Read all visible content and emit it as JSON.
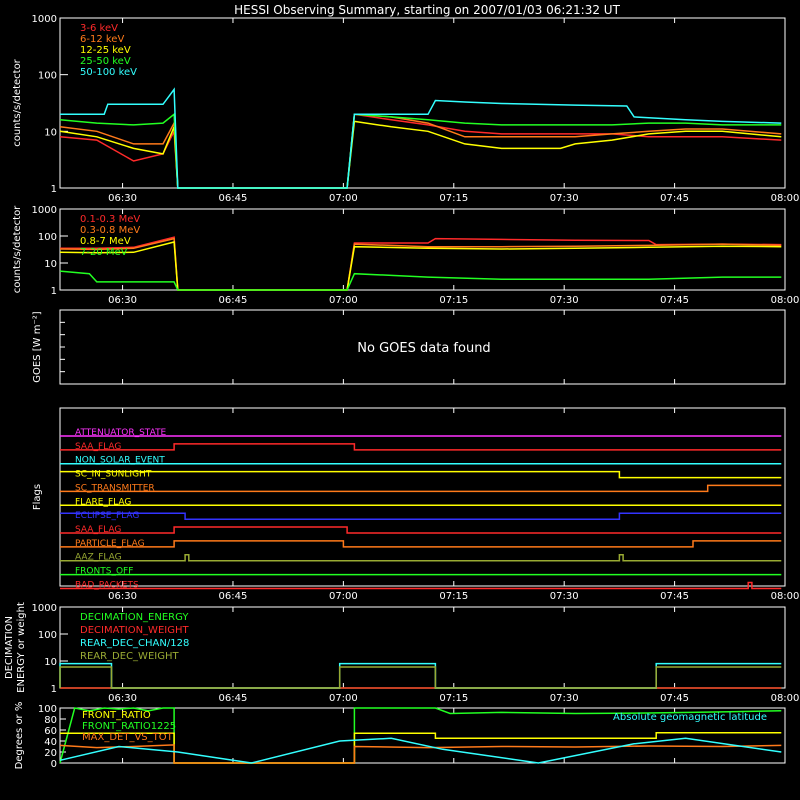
{
  "title": "HESSI Observing Summary, starting on 2007/01/03 06:21:32 UT",
  "time_ticks": [
    "06:30",
    "06:45",
    "07:00",
    "07:15",
    "07:30",
    "07:45",
    "08:00"
  ],
  "colors": {
    "red": "#ff2a2a",
    "orange": "#ff7a1a",
    "yellow": "#ffff00",
    "green": "#22ff22",
    "cyan": "#33ffff",
    "magenta": "#ff33ff",
    "blue": "#3333ff",
    "olive": "#99aa33",
    "white": "#ffffff",
    "darkred": "#cc2222"
  },
  "chart_data": [
    {
      "type": "line",
      "panel": "low-energy",
      "ylabel": "counts/s/detector",
      "yscale": "log",
      "ylim": [
        1,
        1000
      ],
      "y_ticks": [
        "1000",
        "100",
        "10",
        "1"
      ],
      "x_range_minutes": [
        0,
        98
      ],
      "legend": [
        "3-6 keV",
        "6-12 keV",
        "12-25 keV",
        "25-50 keV",
        "50-100 keV"
      ],
      "series": [
        {
          "name": "3-6 keV",
          "color": "red",
          "x": [
            0,
            5,
            10,
            14,
            15.5,
            16,
            39,
            40,
            45,
            50,
            55,
            60,
            68,
            70,
            75,
            80,
            85,
            90,
            98
          ],
          "y": [
            8,
            7,
            3,
            4,
            10,
            1,
            1,
            20,
            16,
            13,
            10,
            9,
            9,
            9,
            9,
            8,
            8,
            8,
            7
          ]
        },
        {
          "name": "6-12 keV",
          "color": "orange",
          "x": [
            0,
            5,
            10,
            14,
            15.5,
            16,
            39,
            40,
            45,
            50,
            55,
            60,
            68,
            70,
            75,
            80,
            85,
            90,
            98
          ],
          "y": [
            12,
            10,
            6,
            6,
            14,
            1,
            1,
            20,
            18,
            14,
            8,
            8,
            8,
            8,
            9,
            10,
            11,
            11,
            9
          ]
        },
        {
          "name": "12-25 keV",
          "color": "yellow",
          "x": [
            0,
            5,
            10,
            14,
            15.5,
            16,
            39,
            40,
            45,
            50,
            55,
            60,
            68,
            70,
            75,
            80,
            85,
            90,
            98
          ],
          "y": [
            10,
            8,
            5,
            4,
            12,
            1,
            1,
            15,
            12,
            10,
            6,
            5,
            5,
            6,
            7,
            9,
            10,
            10,
            8
          ]
        },
        {
          "name": "25-50 keV",
          "color": "green",
          "x": [
            0,
            5,
            10,
            14,
            15.5,
            16,
            39,
            40,
            45,
            50,
            55,
            60,
            68,
            70,
            75,
            80,
            85,
            90,
            98
          ],
          "y": [
            16,
            14,
            13,
            14,
            20,
            1,
            1,
            20,
            18,
            16,
            14,
            13,
            13,
            13,
            13,
            14,
            14,
            13,
            13
          ]
        },
        {
          "name": "50-100 keV",
          "color": "cyan",
          "x": [
            0,
            6,
            6.5,
            14,
            15.5,
            16,
            39,
            40,
            50,
            51,
            55,
            60,
            70,
            77,
            78,
            85,
            90,
            98
          ],
          "y": [
            20,
            20,
            30,
            30,
            55,
            1,
            1,
            20,
            20,
            35,
            33,
            31,
            29,
            28,
            18,
            16,
            15,
            14
          ]
        }
      ]
    },
    {
      "type": "line",
      "panel": "high-energy",
      "ylabel": "counts/s/detector",
      "yscale": "log",
      "ylim": [
        1,
        1000
      ],
      "y_ticks": [
        "1000",
        "100",
        "10",
        "1"
      ],
      "x_range_minutes": [
        0,
        98
      ],
      "legend": [
        "0.1-0.3 MeV",
        "0.3-0.8 MeV",
        "0.8-7 MeV",
        "7-20 MeV"
      ],
      "series": [
        {
          "name": "0.1-0.3 MeV",
          "color": "red",
          "x": [
            0,
            5,
            10,
            15.5,
            16,
            39,
            40,
            50,
            51,
            60,
            70,
            80,
            81,
            90,
            98
          ],
          "y": [
            35,
            35,
            38,
            90,
            1,
            1,
            55,
            55,
            80,
            75,
            70,
            68,
            48,
            50,
            48
          ]
        },
        {
          "name": "0.3-0.8 MeV",
          "color": "orange",
          "x": [
            0,
            5,
            10,
            15.5,
            16,
            39,
            40,
            50,
            60,
            70,
            80,
            90,
            98
          ],
          "y": [
            33,
            32,
            35,
            80,
            1,
            1,
            50,
            40,
            40,
            42,
            45,
            50,
            45
          ]
        },
        {
          "name": "0.8-7 MeV",
          "color": "yellow",
          "x": [
            0,
            5,
            10,
            15.5,
            16,
            39,
            40,
            50,
            60,
            70,
            80,
            90,
            98
          ],
          "y": [
            25,
            24,
            25,
            60,
            1,
            1,
            40,
            35,
            33,
            35,
            38,
            42,
            40
          ]
        },
        {
          "name": "7-20 MeV",
          "color": "green",
          "x": [
            0,
            4,
            5,
            15.5,
            16,
            39,
            40,
            50,
            60,
            70,
            80,
            90,
            98
          ],
          "y": [
            5,
            4,
            2,
            2,
            1,
            1,
            4,
            3,
            2.5,
            2.5,
            2.5,
            3,
            3
          ]
        }
      ]
    },
    {
      "type": "line",
      "panel": "goes",
      "ylabel": "GOES [W m⁻²]",
      "annotation": "No GOES data found",
      "series": []
    },
    {
      "type": "line",
      "panel": "flags",
      "ylabel": "Flags",
      "x_range_minutes": [
        0,
        98
      ],
      "series": [
        {
          "name": "ATTENUATOR_STATE",
          "color": "magenta",
          "x": [
            0,
            98
          ],
          "y": [
            0,
            0
          ]
        },
        {
          "name": "SAA_FLAG",
          "color": "red",
          "x": [
            0,
            15.5,
            15.5,
            40,
            40,
            98
          ],
          "y": [
            0,
            0,
            1,
            1,
            0,
            0
          ]
        },
        {
          "name": "NON_SOLAR_EVENT",
          "color": "cyan",
          "x": [
            0,
            98
          ],
          "y": [
            0,
            0
          ]
        },
        {
          "name": "SC_IN_SUNLIGHT",
          "color": "yellow",
          "x": [
            0,
            76,
            76,
            98
          ],
          "y": [
            1,
            1,
            0,
            0
          ]
        },
        {
          "name": "SC_TRANSMITTER",
          "color": "orange",
          "x": [
            0,
            88,
            88,
            98
          ],
          "y": [
            0,
            0,
            1,
            1
          ]
        },
        {
          "name": "FLARE_FLAG",
          "color": "yellow",
          "x": [
            0,
            98
          ],
          "y": [
            0,
            0
          ]
        },
        {
          "name": "ECLIPSE_FLAG",
          "color": "blue",
          "x": [
            0,
            17,
            17,
            76,
            76,
            98
          ],
          "y": [
            1,
            1,
            0,
            0,
            1,
            1
          ]
        },
        {
          "name": "SAA_FLAG",
          "color": "red",
          "x": [
            0,
            15.5,
            15.5,
            39,
            39,
            98
          ],
          "y": [
            0,
            0,
            1,
            1,
            0,
            0
          ]
        },
        {
          "name": "PARTICLE_FLAG",
          "color": "orange",
          "x": [
            0,
            15.5,
            15.5,
            38.5,
            38.5,
            86,
            86,
            98
          ],
          "y": [
            0,
            0,
            1,
            1,
            0,
            0,
            1,
            1
          ]
        },
        {
          "name": "AAZ_FLAG",
          "color": "olive",
          "x": [
            0,
            17,
            17,
            17.5,
            17.5,
            76,
            76,
            76.5,
            76.5,
            98
          ],
          "y": [
            0,
            0,
            1,
            1,
            0,
            0,
            1,
            1,
            0,
            0
          ]
        },
        {
          "name": "FRONTS_OFF",
          "color": "green",
          "x": [
            0,
            98
          ],
          "y": [
            0,
            0
          ]
        },
        {
          "name": "BAD_PACKETS",
          "color": "red",
          "x": [
            0,
            93.5,
            93.5,
            94,
            94,
            98
          ],
          "y": [
            0,
            0,
            1,
            1,
            0,
            0
          ]
        }
      ]
    },
    {
      "type": "line",
      "panel": "decimation",
      "ylabel": "DECIMATION ENERGY or weight",
      "yscale": "log",
      "ylim": [
        1,
        1000
      ],
      "y_ticks": [
        "1000",
        "100",
        "10",
        "1"
      ],
      "x_range_minutes": [
        0,
        98
      ],
      "legend": [
        "DECIMATION_ENERGY",
        "DECIMATION_WEIGHT",
        "REAR_DEC_CHAN/128",
        "REAR_DEC_WEIGHT"
      ],
      "series": [
        {
          "name": "DECIMATION_ENERGY",
          "color": "green",
          "x": [
            0,
            98
          ],
          "y": [
            1,
            1
          ]
        },
        {
          "name": "DECIMATION_WEIGHT",
          "color": "red",
          "x": [
            0,
            98
          ],
          "y": [
            1,
            1
          ]
        },
        {
          "name": "REAR_DEC_CHAN/128",
          "color": "cyan",
          "x": [
            0,
            0,
            7,
            7,
            38,
            38,
            51,
            51,
            81,
            81,
            98
          ],
          "y": [
            1,
            8,
            8,
            1,
            1,
            8,
            8,
            1,
            1,
            8,
            8
          ]
        },
        {
          "name": "REAR_DEC_WEIGHT",
          "color": "olive",
          "x": [
            0,
            0,
            7,
            7,
            38,
            38,
            51,
            51,
            81,
            81,
            98
          ],
          "y": [
            1,
            6,
            6,
            1,
            1,
            6,
            6,
            1,
            1,
            6,
            6
          ]
        }
      ]
    },
    {
      "type": "line",
      "panel": "ratios",
      "ylabel": "Degrees or %",
      "ylim": [
        0,
        100
      ],
      "y_ticks": [
        "100",
        "80",
        "60",
        "40",
        "20",
        "0"
      ],
      "x_range_minutes": [
        0,
        98
      ],
      "legend": [
        "FRONT_RATIO",
        "FRONT_RATIO1225",
        "MAX_DET_VS_TOT"
      ],
      "annotation": "Absolute geomagnetic latitude",
      "series": [
        {
          "name": "FRONT_RATIO",
          "color": "green",
          "x": [
            0,
            2,
            4,
            6,
            8,
            10,
            12,
            14,
            15.5,
            15.5,
            40,
            40,
            51,
            53,
            60,
            70,
            80,
            90,
            98
          ],
          "y": [
            0,
            100,
            95,
            100,
            98,
            100,
            95,
            100,
            100,
            0,
            0,
            100,
            100,
            90,
            92,
            90,
            91,
            93,
            95
          ]
        },
        {
          "name": "FRONT_RATIO1225",
          "color": "yellow",
          "x": [
            0,
            15.5,
            15.5,
            40,
            40,
            51,
            51,
            81,
            81,
            98
          ],
          "y": [
            54,
            54,
            0,
            0,
            54,
            54,
            45,
            45,
            55,
            55
          ]
        },
        {
          "name": "MAX_DET_VS_TOT",
          "color": "orange",
          "x": [
            0,
            5,
            10,
            15.5,
            15.5,
            40,
            40,
            50,
            60,
            70,
            80,
            90,
            98
          ],
          "y": [
            32,
            28,
            30,
            33,
            0,
            0,
            30,
            28,
            30,
            29,
            31,
            30,
            32
          ]
        },
        {
          "name": "Absolute geomagnetic latitude",
          "color": "cyan",
          "x": [
            0,
            8,
            16,
            26,
            38,
            45,
            52,
            65,
            78,
            85,
            98
          ],
          "y": [
            5,
            30,
            20,
            0,
            40,
            45,
            25,
            0,
            35,
            45,
            20
          ]
        }
      ]
    }
  ]
}
